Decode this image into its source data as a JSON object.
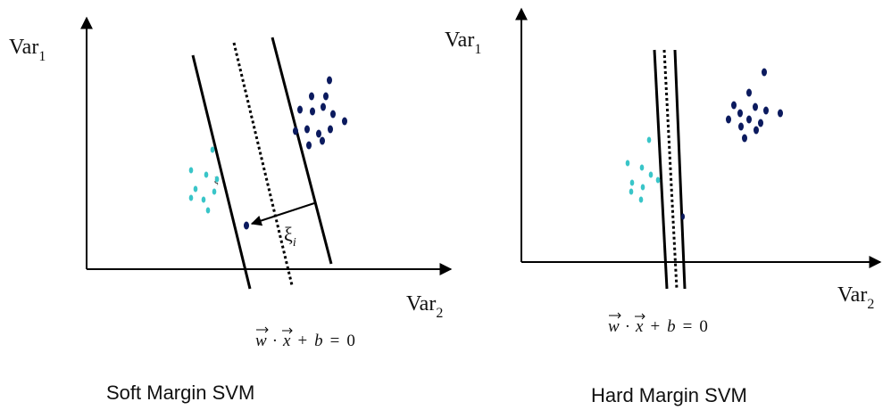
{
  "colors": {
    "ink": "#000000",
    "class_positive": "#0b1a5e",
    "class_negative": "#39c5c8"
  },
  "soft": {
    "caption": "Soft Margin SVM",
    "y_label": "Var",
    "y_label_sub": "1",
    "x_label": "Var",
    "x_label_sub": "2",
    "equation": {
      "w": "w",
      "dot": "·",
      "x": "x",
      "plus": "+",
      "b": "b",
      "eq": "=",
      "zero": "0"
    },
    "slack_label": "ξ",
    "slack_label_sub": "i",
    "slack_small": "ξ"
  },
  "hard": {
    "caption": "Hard Margin SVM",
    "y_label": "Var",
    "y_label_sub": "1",
    "x_label": "Var",
    "x_label_sub": "2",
    "equation": {
      "w": "w",
      "dot": "·",
      "x": "x",
      "plus": "+",
      "b": "b",
      "eq": "=",
      "zero": "0"
    }
  }
}
